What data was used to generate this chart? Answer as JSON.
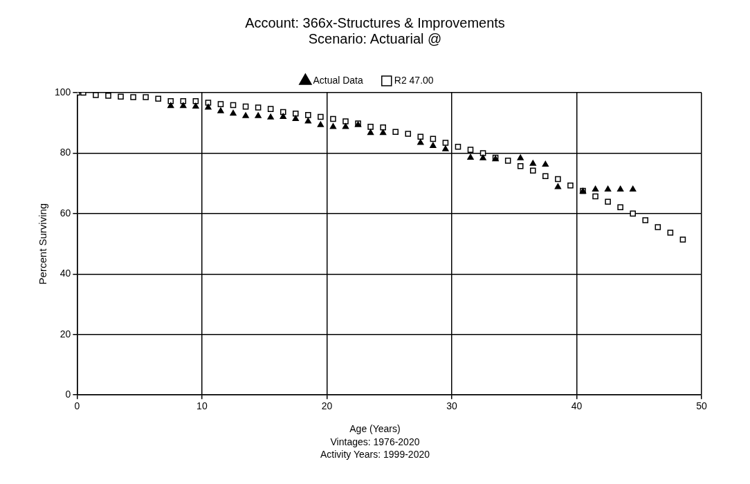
{
  "chart_data": {
    "type": "scatter",
    "title": "Account: 366x-Structures & Improvements",
    "subtitle": "Scenario: Actuarial @",
    "xlabel": "Age (Years)",
    "ylabel": "Percent Surviving",
    "annotations": [
      "Vintages: 1976-2020",
      "Activity Years: 1999-2020"
    ],
    "xlim": [
      0,
      50
    ],
    "xticks": [
      0,
      10,
      20,
      30,
      40,
      50
    ],
    "ylim": [
      0,
      100
    ],
    "yticks": [
      0,
      20,
      40,
      60,
      80,
      100
    ],
    "grid": true,
    "legend": "top",
    "series": [
      {
        "name": "Actual Data",
        "color": "#000000",
        "marker": "triangle",
        "x": [
          7.5,
          8.5,
          9.5,
          10.5,
          11.5,
          12.5,
          13.5,
          14.5,
          15.5,
          16.5,
          17.5,
          18.5,
          19.5,
          20.5,
          21.5,
          22.5,
          23.5,
          24.5,
          25.5,
          26.5,
          27.5,
          28.5,
          29.5,
          30.5,
          31.5,
          32.5,
          33.5,
          34.5,
          35.5,
          36.5,
          37.5,
          38.5,
          39.5,
          40.5,
          41.5,
          42.5,
          43.5,
          44.5
        ],
        "values": [
          95.6,
          95.6,
          95.4,
          95.1,
          93.9,
          93.1,
          92.3,
          92.3,
          91.8,
          92,
          91.3,
          90.5,
          89.3,
          88.7,
          88.7,
          89.3,
          86.7,
          86.7,
          null,
          null,
          83.4,
          82.4,
          81.3,
          null,
          78.5,
          78.3,
          78,
          null,
          78.3,
          76.5,
          76.2,
          68.8,
          null,
          67.3,
          68,
          68,
          68,
          68
        ]
      },
      {
        "name": "R2 47.00",
        "color": "#000000",
        "marker": "square",
        "x": [
          0,
          0.5,
          1.5,
          2.5,
          3.5,
          4.5,
          5.5,
          6.5,
          7.5,
          8.5,
          9.5,
          10.5,
          11.5,
          12.5,
          13.5,
          14.5,
          15.5,
          16.5,
          17.5,
          18.5,
          19.5,
          20.5,
          21.5,
          22.5,
          23.5,
          24.5,
          25.5,
          26.5,
          27.5,
          28.5,
          29.5,
          30.5,
          31.5,
          32.5,
          33.5,
          34.5,
          35.5,
          36.5,
          37.5,
          38.5,
          39.5,
          40.5,
          41.5,
          42.5,
          43.5,
          44.5,
          45.5,
          46.5,
          47.5,
          48.5
        ],
        "values": [
          100,
          100,
          99.2,
          99,
          98.7,
          98.5,
          98.5,
          98,
          97.2,
          97.2,
          97.2,
          96.7,
          96.2,
          95.9,
          95.4,
          95.1,
          94.6,
          93.6,
          93.1,
          92.6,
          92,
          91.3,
          90.5,
          89.8,
          88.7,
          88.5,
          87,
          86.4,
          85.4,
          84.7,
          83.4,
          82.1,
          81.1,
          80,
          78.5,
          77.5,
          75.7,
          74.2,
          72.4,
          71.4,
          69.3,
          67.5,
          65.7,
          63.9,
          62.1,
          60,
          57.8,
          55.5,
          53.7,
          51.4
        ]
      }
    ]
  }
}
